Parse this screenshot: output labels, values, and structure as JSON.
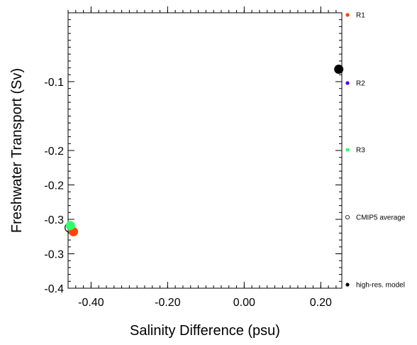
{
  "chart_data": {
    "type": "scatter",
    "title": "",
    "xlabel": "Salinity Difference (psu)",
    "ylabel": "Freshwater Transport (Sv)",
    "xlim": [
      -0.46,
      0.255
    ],
    "ylim": [
      -0.4,
      0.0
    ],
    "x_ticks": [
      -0.4,
      -0.2,
      0.0,
      0.2
    ],
    "x_tick_labels": [
      "-0.40",
      "-0.20",
      "0.00",
      "0.20"
    ],
    "y_ticks": [
      -0.1,
      -0.2,
      -0.3,
      -0.4
    ],
    "y_tick_labels": [
      "-0.1",
      "-0.2",
      "-0.2",
      "-0.3",
      "-0.3",
      "-0.4"
    ],
    "y_tick_label_values": [
      -0.1,
      -0.2,
      -0.25,
      -0.3,
      -0.35,
      -0.4
    ],
    "grid": false,
    "legend_position": "right",
    "series": [
      {
        "name": "R1",
        "color": "#ff4500",
        "marker": "filled",
        "x": [
          -0.446
        ],
        "y": [
          -0.318
        ]
      },
      {
        "name": "R2",
        "color": "#4a00ff",
        "marker": "filled",
        "x": [],
        "y": []
      },
      {
        "name": "R3",
        "color": "#33ff66",
        "marker": "filled",
        "x": [
          -0.454
        ],
        "y": [
          -0.309
        ]
      },
      {
        "name": "CMIP5 average",
        "color": "#000000",
        "marker": "open",
        "x": [
          -0.456
        ],
        "y": [
          -0.312
        ]
      },
      {
        "name": "high-res. model",
        "color": "#000000",
        "marker": "filled",
        "x": [
          0.247
        ],
        "y": [
          -0.082
        ]
      }
    ]
  }
}
